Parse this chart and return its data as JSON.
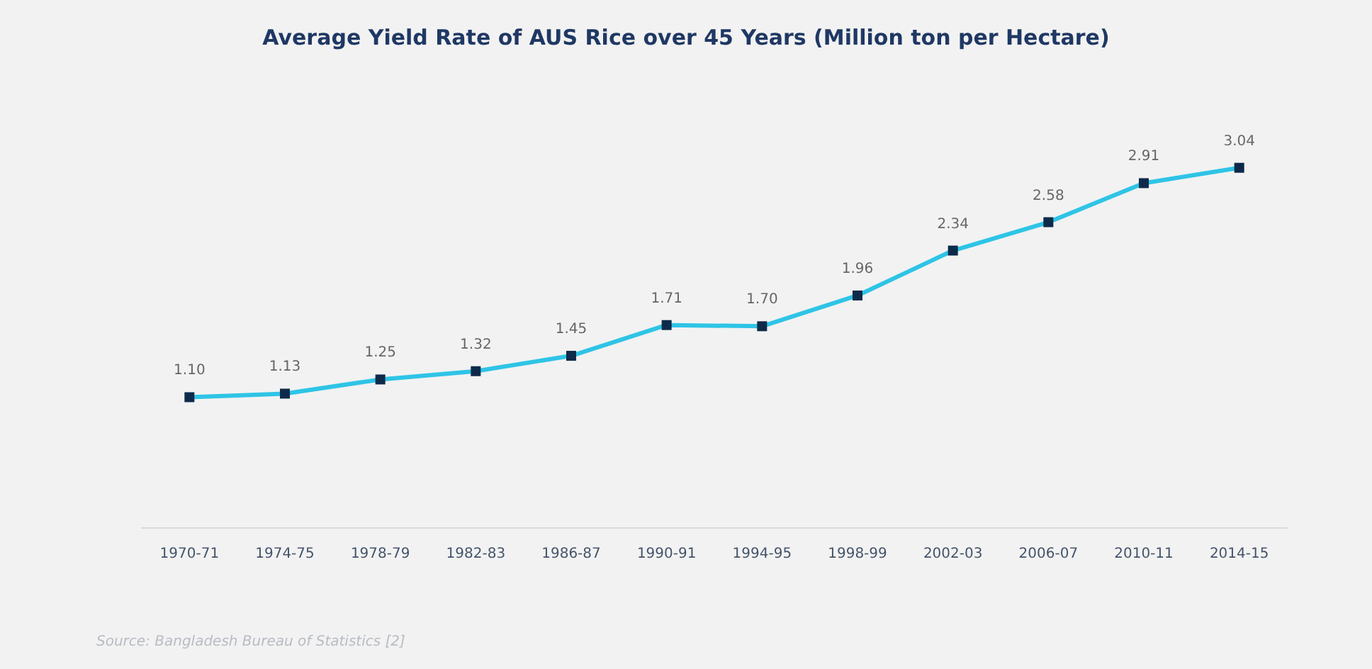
{
  "chart_data": {
    "type": "line",
    "title": "Average Yield Rate of AUS Rice over 45 Years (Million ton per Hectare)",
    "categories": [
      "1970-71",
      "1974-75",
      "1978-79",
      "1982-83",
      "1986-87",
      "1990-91",
      "1994-95",
      "1998-99",
      "2002-03",
      "2006-07",
      "2010-11",
      "2014-15"
    ],
    "series": [
      {
        "color": "#2ec4e6",
        "values": [
          1.1,
          1.13,
          1.25,
          1.32,
          1.45,
          1.71,
          1.7,
          1.96,
          2.34,
          2.58,
          2.91,
          3.04
        ],
        "value_labels": [
          "1.10",
          "1.13",
          "1.25",
          "1.32",
          "1.45",
          "1.71",
          "1.70",
          "1.96",
          "2.34",
          "2.58",
          "2.91",
          "3.04"
        ]
      }
    ],
    "marker": "square",
    "annotations": [
      "Source: Bangladesh Bureau of Statistics [2]"
    ]
  }
}
